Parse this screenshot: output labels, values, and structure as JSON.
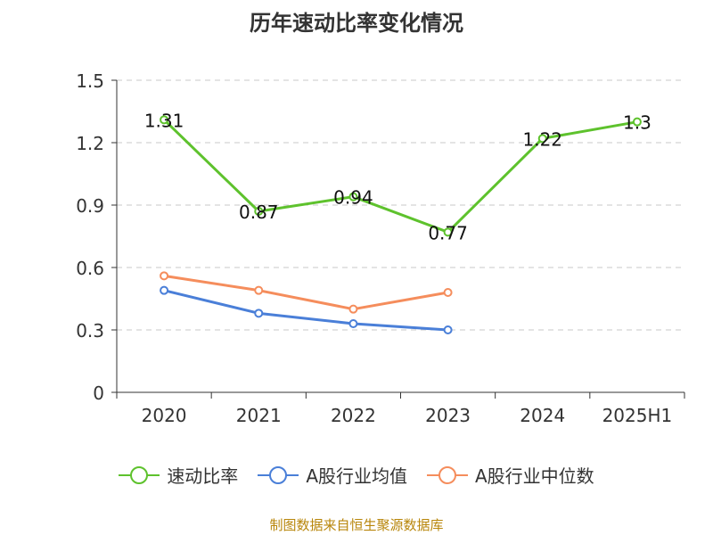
{
  "title": "历年速动比率变化情况",
  "source": "制图数据来自恒生聚源数据库",
  "chart_data": {
    "type": "line",
    "categories": [
      "2020",
      "2021",
      "2022",
      "2023",
      "2024",
      "2025H1"
    ],
    "ylim": [
      0,
      1.5
    ],
    "yticks": [
      0,
      0.3,
      0.6,
      0.9,
      1.2,
      1.5
    ],
    "ytick_labels": [
      "0",
      "0.3",
      "0.6",
      "0.9",
      "1.2",
      "1.5"
    ],
    "grid": true,
    "legend_position": "bottom",
    "series": [
      {
        "name": "速动比率",
        "color": "#5ec22d",
        "show_labels": true,
        "values": [
          1.31,
          0.87,
          0.94,
          0.77,
          1.22,
          1.3
        ],
        "labels": [
          "1.31",
          "0.87",
          "0.94",
          "0.77",
          "1.22",
          "1.3"
        ]
      },
      {
        "name": "A股行业均值",
        "color": "#4a7fd8",
        "show_labels": false,
        "values": [
          0.49,
          0.38,
          0.33,
          0.3,
          null,
          null
        ]
      },
      {
        "name": "A股行业中位数",
        "color": "#f58d5c",
        "show_labels": false,
        "values": [
          0.56,
          0.49,
          0.4,
          0.48,
          null,
          null
        ]
      }
    ]
  }
}
